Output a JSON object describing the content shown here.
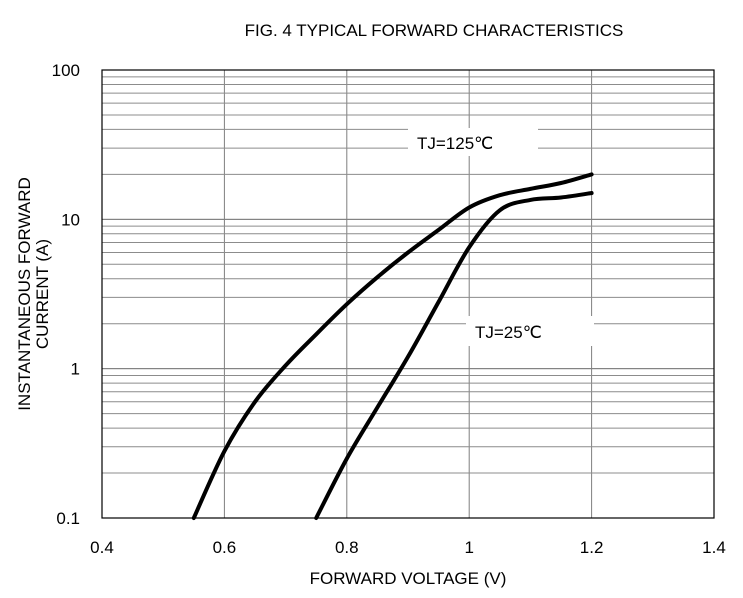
{
  "chart_data": {
    "type": "line",
    "title": "FIG. 4 TYPICAL FORWARD CHARACTERISTICS",
    "xlabel": "FORWARD VOLTAGE (V)",
    "ylabel_line1": "INSTANTANEOUS FORWARD",
    "ylabel_line2": "CURRENT (A)",
    "xlim": [
      0.4,
      1.4
    ],
    "ylim": [
      0.1,
      100
    ],
    "yscale": "log",
    "grid": true,
    "x_ticks": [
      0.4,
      0.6,
      0.8,
      1.0,
      1.2,
      1.4
    ],
    "x_tick_labels": [
      "0.4",
      "0.6",
      "0.8",
      "1",
      "1.2",
      "1.4"
    ],
    "y_ticks": [
      0.1,
      1,
      10,
      100
    ],
    "y_tick_labels": [
      "0.1",
      "1",
      "10",
      "100"
    ],
    "series": [
      {
        "name": "TJ=125℃",
        "x": [
          0.55,
          0.6,
          0.65,
          0.7,
          0.75,
          0.8,
          0.85,
          0.9,
          0.95,
          1.0,
          1.05,
          1.1,
          1.15,
          1.2
        ],
        "y": [
          0.1,
          0.28,
          0.6,
          1.05,
          1.7,
          2.7,
          4.1,
          6.0,
          8.5,
          12.0,
          14.5,
          16.0,
          17.5,
          20.0
        ]
      },
      {
        "name": "TJ=25℃",
        "x": [
          0.75,
          0.8,
          0.85,
          0.9,
          0.95,
          1.0,
          1.05,
          1.1,
          1.15,
          1.2
        ],
        "y": [
          0.1,
          0.25,
          0.55,
          1.2,
          2.8,
          6.5,
          11.5,
          13.5,
          14.0,
          15.0
        ]
      }
    ]
  }
}
